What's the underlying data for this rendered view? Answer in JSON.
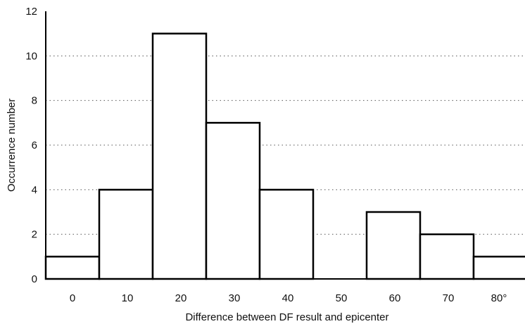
{
  "chart_data": {
    "type": "bar",
    "categories": [
      "0",
      "10",
      "20",
      "30",
      "40",
      "50",
      "60",
      "70",
      "80°"
    ],
    "values": [
      1,
      4,
      11,
      7,
      4,
      0,
      3,
      2,
      1
    ],
    "xlabel": "Difference between DF result and epicenter",
    "ylabel": "Occurrence number",
    "ylim": [
      0,
      12
    ],
    "yticks": [
      "0",
      "2",
      "4",
      "6",
      "8",
      "10",
      "12"
    ],
    "grid": "horizontal-dotted",
    "colors": {
      "bar_fill": "#ffffff",
      "bar_stroke": "#000000",
      "grid": "#555555"
    }
  }
}
